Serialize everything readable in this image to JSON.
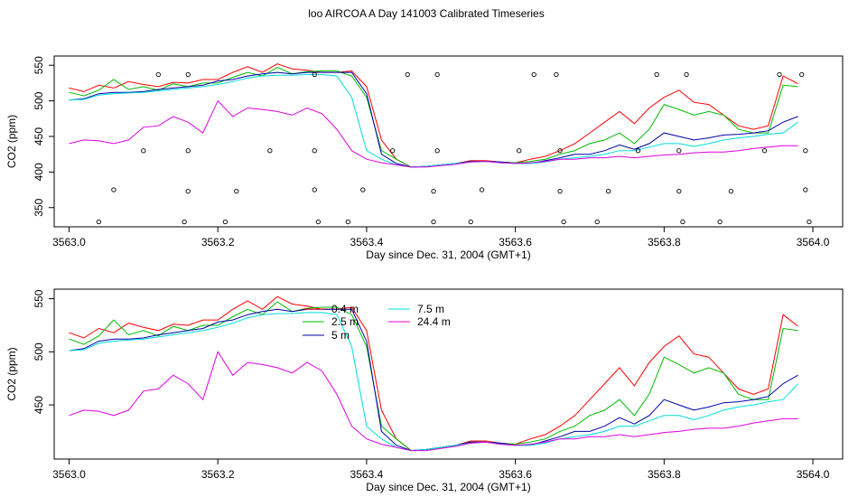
{
  "title": "loo AIRCOA A  Day 141003  Calibrated Timeseries",
  "colors": {
    "0.4 m": "#ff0000",
    "2.5 m": "#00bb00",
    "5 m": "#0000aa",
    "7.5 m": "#00dddd",
    "24.4 m": "#dd00dd",
    "points": "#000000"
  },
  "chart_data": [
    {
      "type": "line",
      "xlabel": "Day since Dec. 31, 2004 (GMT+1)",
      "ylabel": "CO2 (ppm)",
      "xlim": [
        3562.98,
        3564.04
      ],
      "ylim": [
        323,
        563
      ],
      "xticks": [
        "3563.0",
        "3563.2",
        "3563.4",
        "3563.6",
        "3563.8",
        "3564.0"
      ],
      "yticks": [
        "350",
        "400",
        "450",
        "500",
        "550"
      ],
      "x": [
        3563.0,
        3563.02,
        3563.04,
        3563.06,
        3563.08,
        3563.1,
        3563.12,
        3563.14,
        3563.16,
        3563.18,
        3563.2,
        3563.22,
        3563.24,
        3563.26,
        3563.28,
        3563.3,
        3563.32,
        3563.34,
        3563.36,
        3563.38,
        3563.4,
        3563.42,
        3563.44,
        3563.46,
        3563.48,
        3563.5,
        3563.52,
        3563.54,
        3563.56,
        3563.58,
        3563.6,
        3563.62,
        3563.64,
        3563.66,
        3563.68,
        3563.7,
        3563.72,
        3563.74,
        3563.76,
        3563.78,
        3563.8,
        3563.82,
        3563.84,
        3563.86,
        3563.88,
        3563.9,
        3563.92,
        3563.94,
        3563.96,
        3563.98
      ],
      "series": [
        {
          "name": "0.4 m",
          "values": [
            518,
            513,
            522,
            518,
            527,
            523,
            520,
            526,
            525,
            530,
            530,
            540,
            548,
            540,
            552,
            545,
            543,
            540,
            540,
            542,
            520,
            445,
            418,
            407,
            408,
            410,
            412,
            416,
            416,
            414,
            413,
            418,
            422,
            430,
            440,
            455,
            470,
            485,
            468,
            490,
            505,
            515,
            498,
            495,
            480,
            465,
            460,
            465,
            535,
            524
          ]
        },
        {
          "name": "2.5 m",
          "values": [
            512,
            507,
            515,
            530,
            516,
            520,
            515,
            524,
            520,
            525,
            525,
            533,
            540,
            535,
            547,
            538,
            541,
            542,
            542,
            535,
            505,
            430,
            418,
            407,
            408,
            410,
            412,
            415,
            415,
            414,
            413,
            415,
            418,
            425,
            430,
            440,
            445,
            455,
            440,
            460,
            495,
            488,
            480,
            485,
            480,
            460,
            455,
            455,
            522,
            520
          ]
        },
        {
          "name": "5 m",
          "values": [
            501,
            503,
            510,
            512,
            512,
            513,
            516,
            518,
            520,
            522,
            528,
            530,
            535,
            538,
            540,
            538,
            540,
            540,
            540,
            540,
            510,
            425,
            412,
            407,
            408,
            410,
            412,
            415,
            415,
            414,
            412,
            412,
            416,
            420,
            425,
            425,
            430,
            438,
            432,
            440,
            455,
            450,
            445,
            448,
            452,
            453,
            455,
            458,
            470,
            478
          ]
        },
        {
          "name": "7.5 m",
          "values": [
            501,
            502,
            508,
            510,
            511,
            512,
            514,
            516,
            518,
            520,
            523,
            527,
            532,
            535,
            536,
            536,
            537,
            537,
            535,
            505,
            430,
            418,
            410,
            407,
            408,
            410,
            412,
            414,
            415,
            413,
            412,
            412,
            414,
            418,
            420,
            422,
            425,
            430,
            430,
            435,
            440,
            440,
            436,
            440,
            445,
            448,
            450,
            453,
            455,
            470
          ]
        },
        {
          "name": "24.4 m",
          "values": [
            440,
            445,
            444,
            440,
            445,
            463,
            465,
            478,
            470,
            455,
            500,
            478,
            490,
            488,
            485,
            480,
            490,
            482,
            460,
            430,
            418,
            413,
            410,
            407,
            407,
            409,
            411,
            414,
            415,
            413,
            412,
            413,
            415,
            418,
            418,
            420,
            420,
            422,
            420,
            422,
            424,
            425,
            427,
            428,
            428,
            430,
            433,
            435,
            437,
            437
          ]
        }
      ],
      "markers": [
        {
          "x": 3563.04,
          "y": 330
        },
        {
          "x": 3563.06,
          "y": 375
        },
        {
          "x": 3563.1,
          "y": 430
        },
        {
          "x": 3563.12,
          "y": 537
        },
        {
          "x": 3563.155,
          "y": 330
        },
        {
          "x": 3563.16,
          "y": 373
        },
        {
          "x": 3563.16,
          "y": 430
        },
        {
          "x": 3563.16,
          "y": 537
        },
        {
          "x": 3563.21,
          "y": 330
        },
        {
          "x": 3563.225,
          "y": 373
        },
        {
          "x": 3563.27,
          "y": 430
        },
        {
          "x": 3563.33,
          "y": 430
        },
        {
          "x": 3563.33,
          "y": 375
        },
        {
          "x": 3563.335,
          "y": 330
        },
        {
          "x": 3563.33,
          "y": 537
        },
        {
          "x": 3563.375,
          "y": 330
        },
        {
          "x": 3563.395,
          "y": 375
        },
        {
          "x": 3563.435,
          "y": 430
        },
        {
          "x": 3563.455,
          "y": 537
        },
        {
          "x": 3563.49,
          "y": 330
        },
        {
          "x": 3563.49,
          "y": 373
        },
        {
          "x": 3563.495,
          "y": 430
        },
        {
          "x": 3563.495,
          "y": 537
        },
        {
          "x": 3563.54,
          "y": 330
        },
        {
          "x": 3563.555,
          "y": 375
        },
        {
          "x": 3563.605,
          "y": 430
        },
        {
          "x": 3563.625,
          "y": 537
        },
        {
          "x": 3563.655,
          "y": 537
        },
        {
          "x": 3563.66,
          "y": 430
        },
        {
          "x": 3563.66,
          "y": 373
        },
        {
          "x": 3563.665,
          "y": 330
        },
        {
          "x": 3563.71,
          "y": 330
        },
        {
          "x": 3563.725,
          "y": 373
        },
        {
          "x": 3563.765,
          "y": 430
        },
        {
          "x": 3563.79,
          "y": 537
        },
        {
          "x": 3563.82,
          "y": 430
        },
        {
          "x": 3563.82,
          "y": 373
        },
        {
          "x": 3563.83,
          "y": 537
        },
        {
          "x": 3563.825,
          "y": 330
        },
        {
          "x": 3563.875,
          "y": 330
        },
        {
          "x": 3563.89,
          "y": 373
        },
        {
          "x": 3563.935,
          "y": 430
        },
        {
          "x": 3563.955,
          "y": 537
        },
        {
          "x": 3563.985,
          "y": 537
        },
        {
          "x": 3563.99,
          "y": 430
        },
        {
          "x": 3563.99,
          "y": 375
        },
        {
          "x": 3563.995,
          "y": 330
        }
      ]
    },
    {
      "type": "line",
      "xlabel": "Day since Dec. 31, 2004 (GMT+1)",
      "ylabel": "CO2 (ppm)",
      "xlim": [
        3562.98,
        3564.04
      ],
      "ylim": [
        399,
        559
      ],
      "xticks": [
        "3563.0",
        "3563.2",
        "3563.4",
        "3563.6",
        "3563.8",
        "3564.0"
      ],
      "yticks": [
        "450",
        "500",
        "550"
      ],
      "legend": {
        "position": "top-center",
        "entries": [
          "0.4 m",
          "2.5 m",
          "5 m",
          "7.5 m",
          "24.4 m"
        ]
      },
      "same_series_as_panel": 0
    }
  ]
}
